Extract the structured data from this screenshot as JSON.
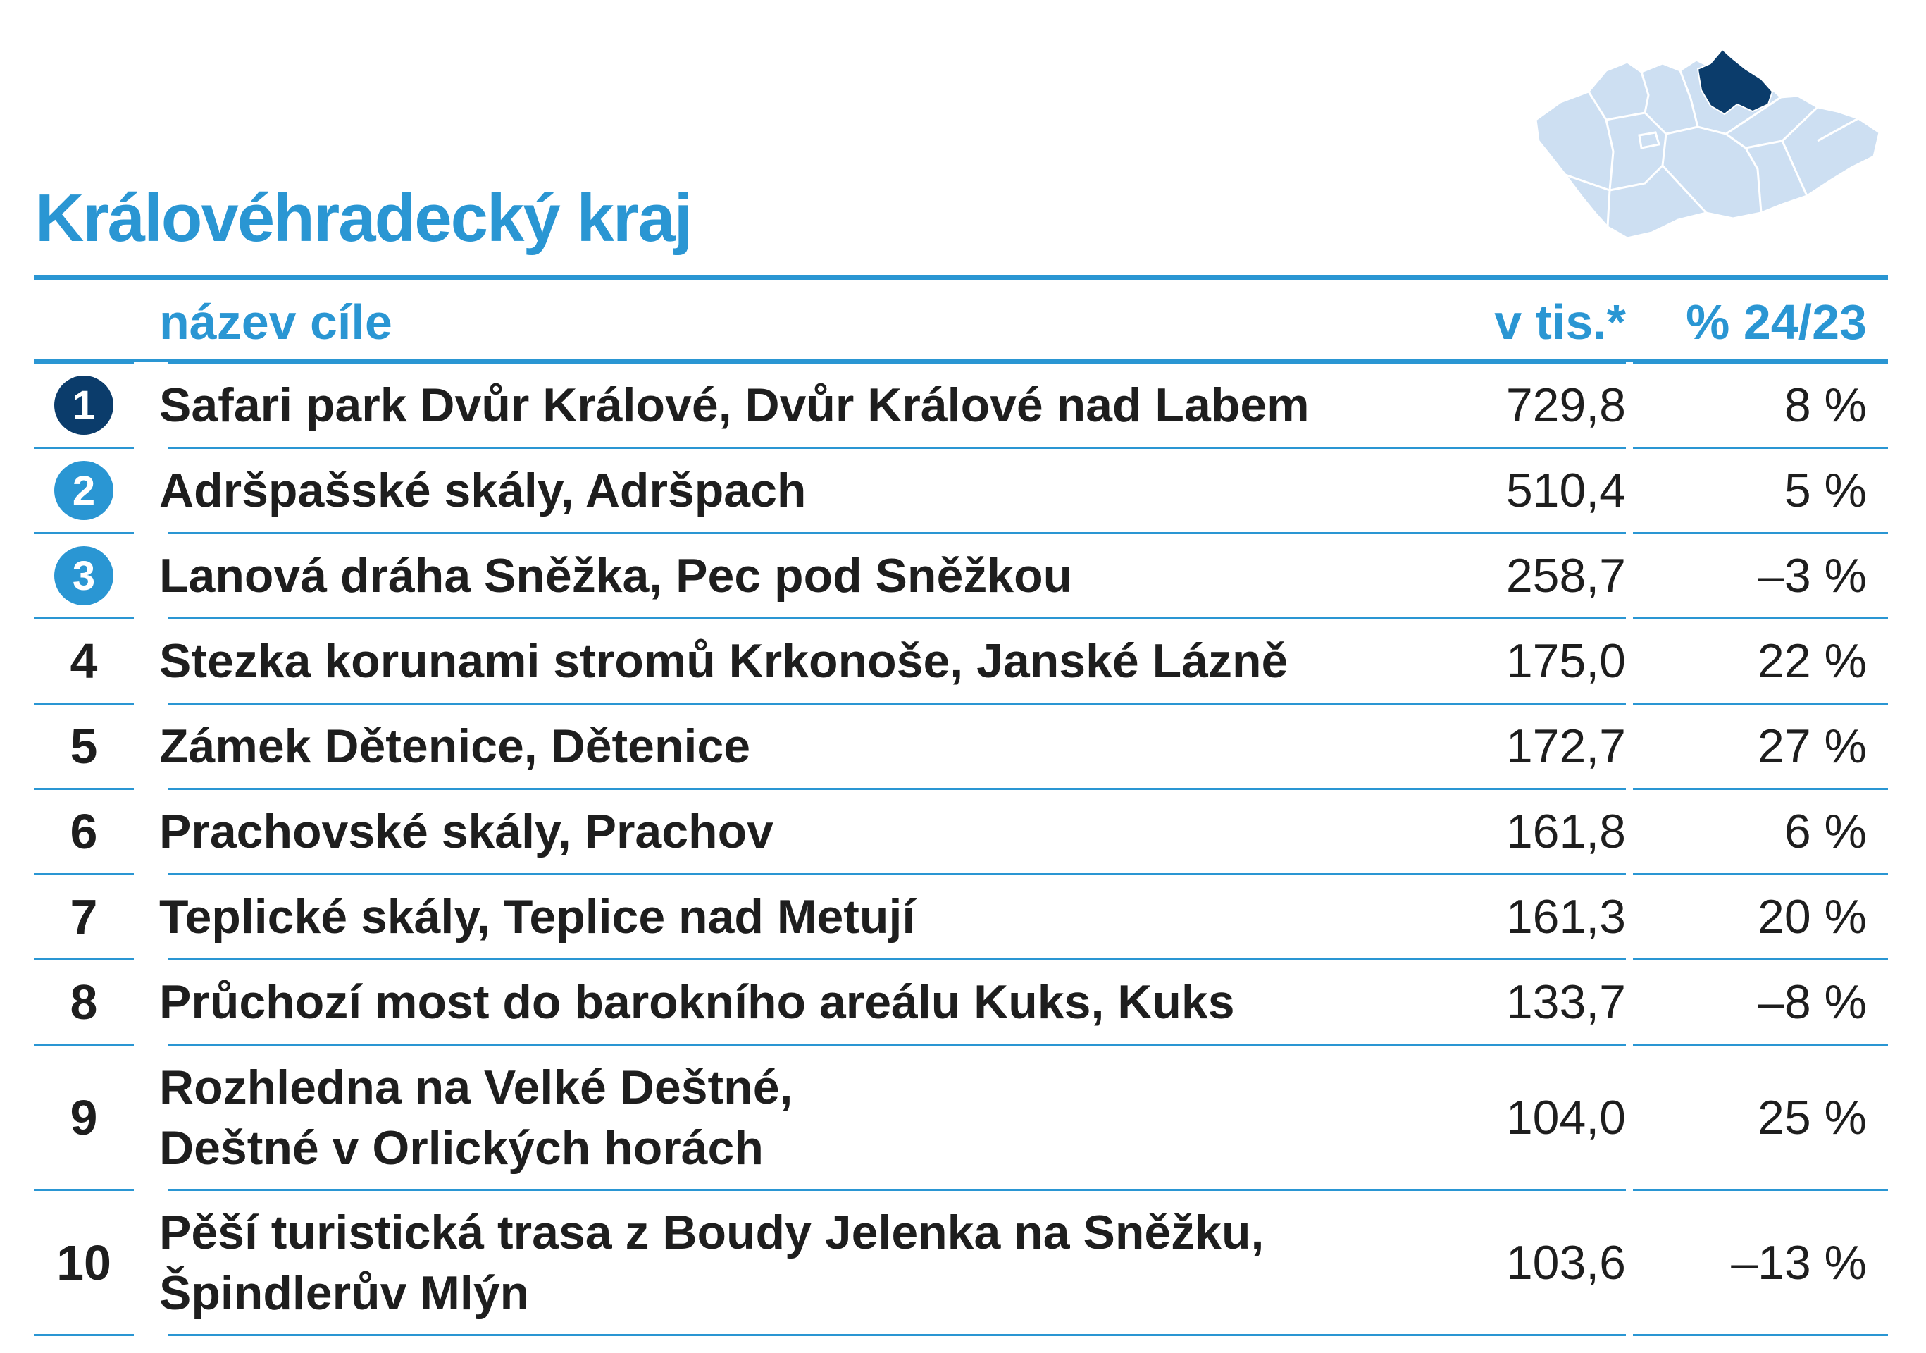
{
  "title": "Královéhradecký kraj",
  "colors": {
    "accent": "#2a96d3",
    "rank1": "#0b3c6b",
    "rank_top": "#2a96d3",
    "map_fill": "#cddff2",
    "map_highlight": "#0b3c6b"
  },
  "map": {
    "icon": "czech-republic-map-icon",
    "highlighted_region": "Královéhradecký kraj"
  },
  "table": {
    "headers": {
      "name": "název cíle",
      "value": "v tis.*",
      "change": "% 24/23"
    },
    "rows": [
      {
        "rank": "1",
        "lines": [
          "Safari park Dvůr Králové, Dvůr Králové nad Labem"
        ],
        "value": "729,8",
        "change": "8 %"
      },
      {
        "rank": "2",
        "lines": [
          "Adršpašské skály, Adršpach"
        ],
        "value": "510,4",
        "change": "5 %"
      },
      {
        "rank": "3",
        "lines": [
          "Lanová dráha Sněžka, Pec pod Sněžkou"
        ],
        "value": "258,7",
        "change": "–3 %"
      },
      {
        "rank": "4",
        "lines": [
          "Stezka korunami stromů Krkonoše, Janské Lázně"
        ],
        "value": "175,0",
        "change": "22 %"
      },
      {
        "rank": "5",
        "lines": [
          "Zámek Dětenice, Dětenice"
        ],
        "value": "172,7",
        "change": "27 %"
      },
      {
        "rank": "6",
        "lines": [
          "Prachovské skály, Prachov"
        ],
        "value": "161,8",
        "change": "6 %"
      },
      {
        "rank": "7",
        "lines": [
          "Teplické skály, Teplice nad Metují"
        ],
        "value": "161,3",
        "change": "20 %"
      },
      {
        "rank": "8",
        "lines": [
          "Průchozí most do barokního areálu Kuks, Kuks"
        ],
        "value": "133,7",
        "change": "–8 %"
      },
      {
        "rank": "9",
        "lines": [
          "Rozhledna na Velké Deštné,",
          "Deštné v Orlických horách"
        ],
        "value": "104,0",
        "change": "25 %"
      },
      {
        "rank": "10",
        "lines": [
          "Pěší turistická trasa z Boudy Jelenka na Sněžku,",
          "Špindlerův Mlýn"
        ],
        "value": "103,6",
        "change": "–13 %"
      }
    ]
  }
}
